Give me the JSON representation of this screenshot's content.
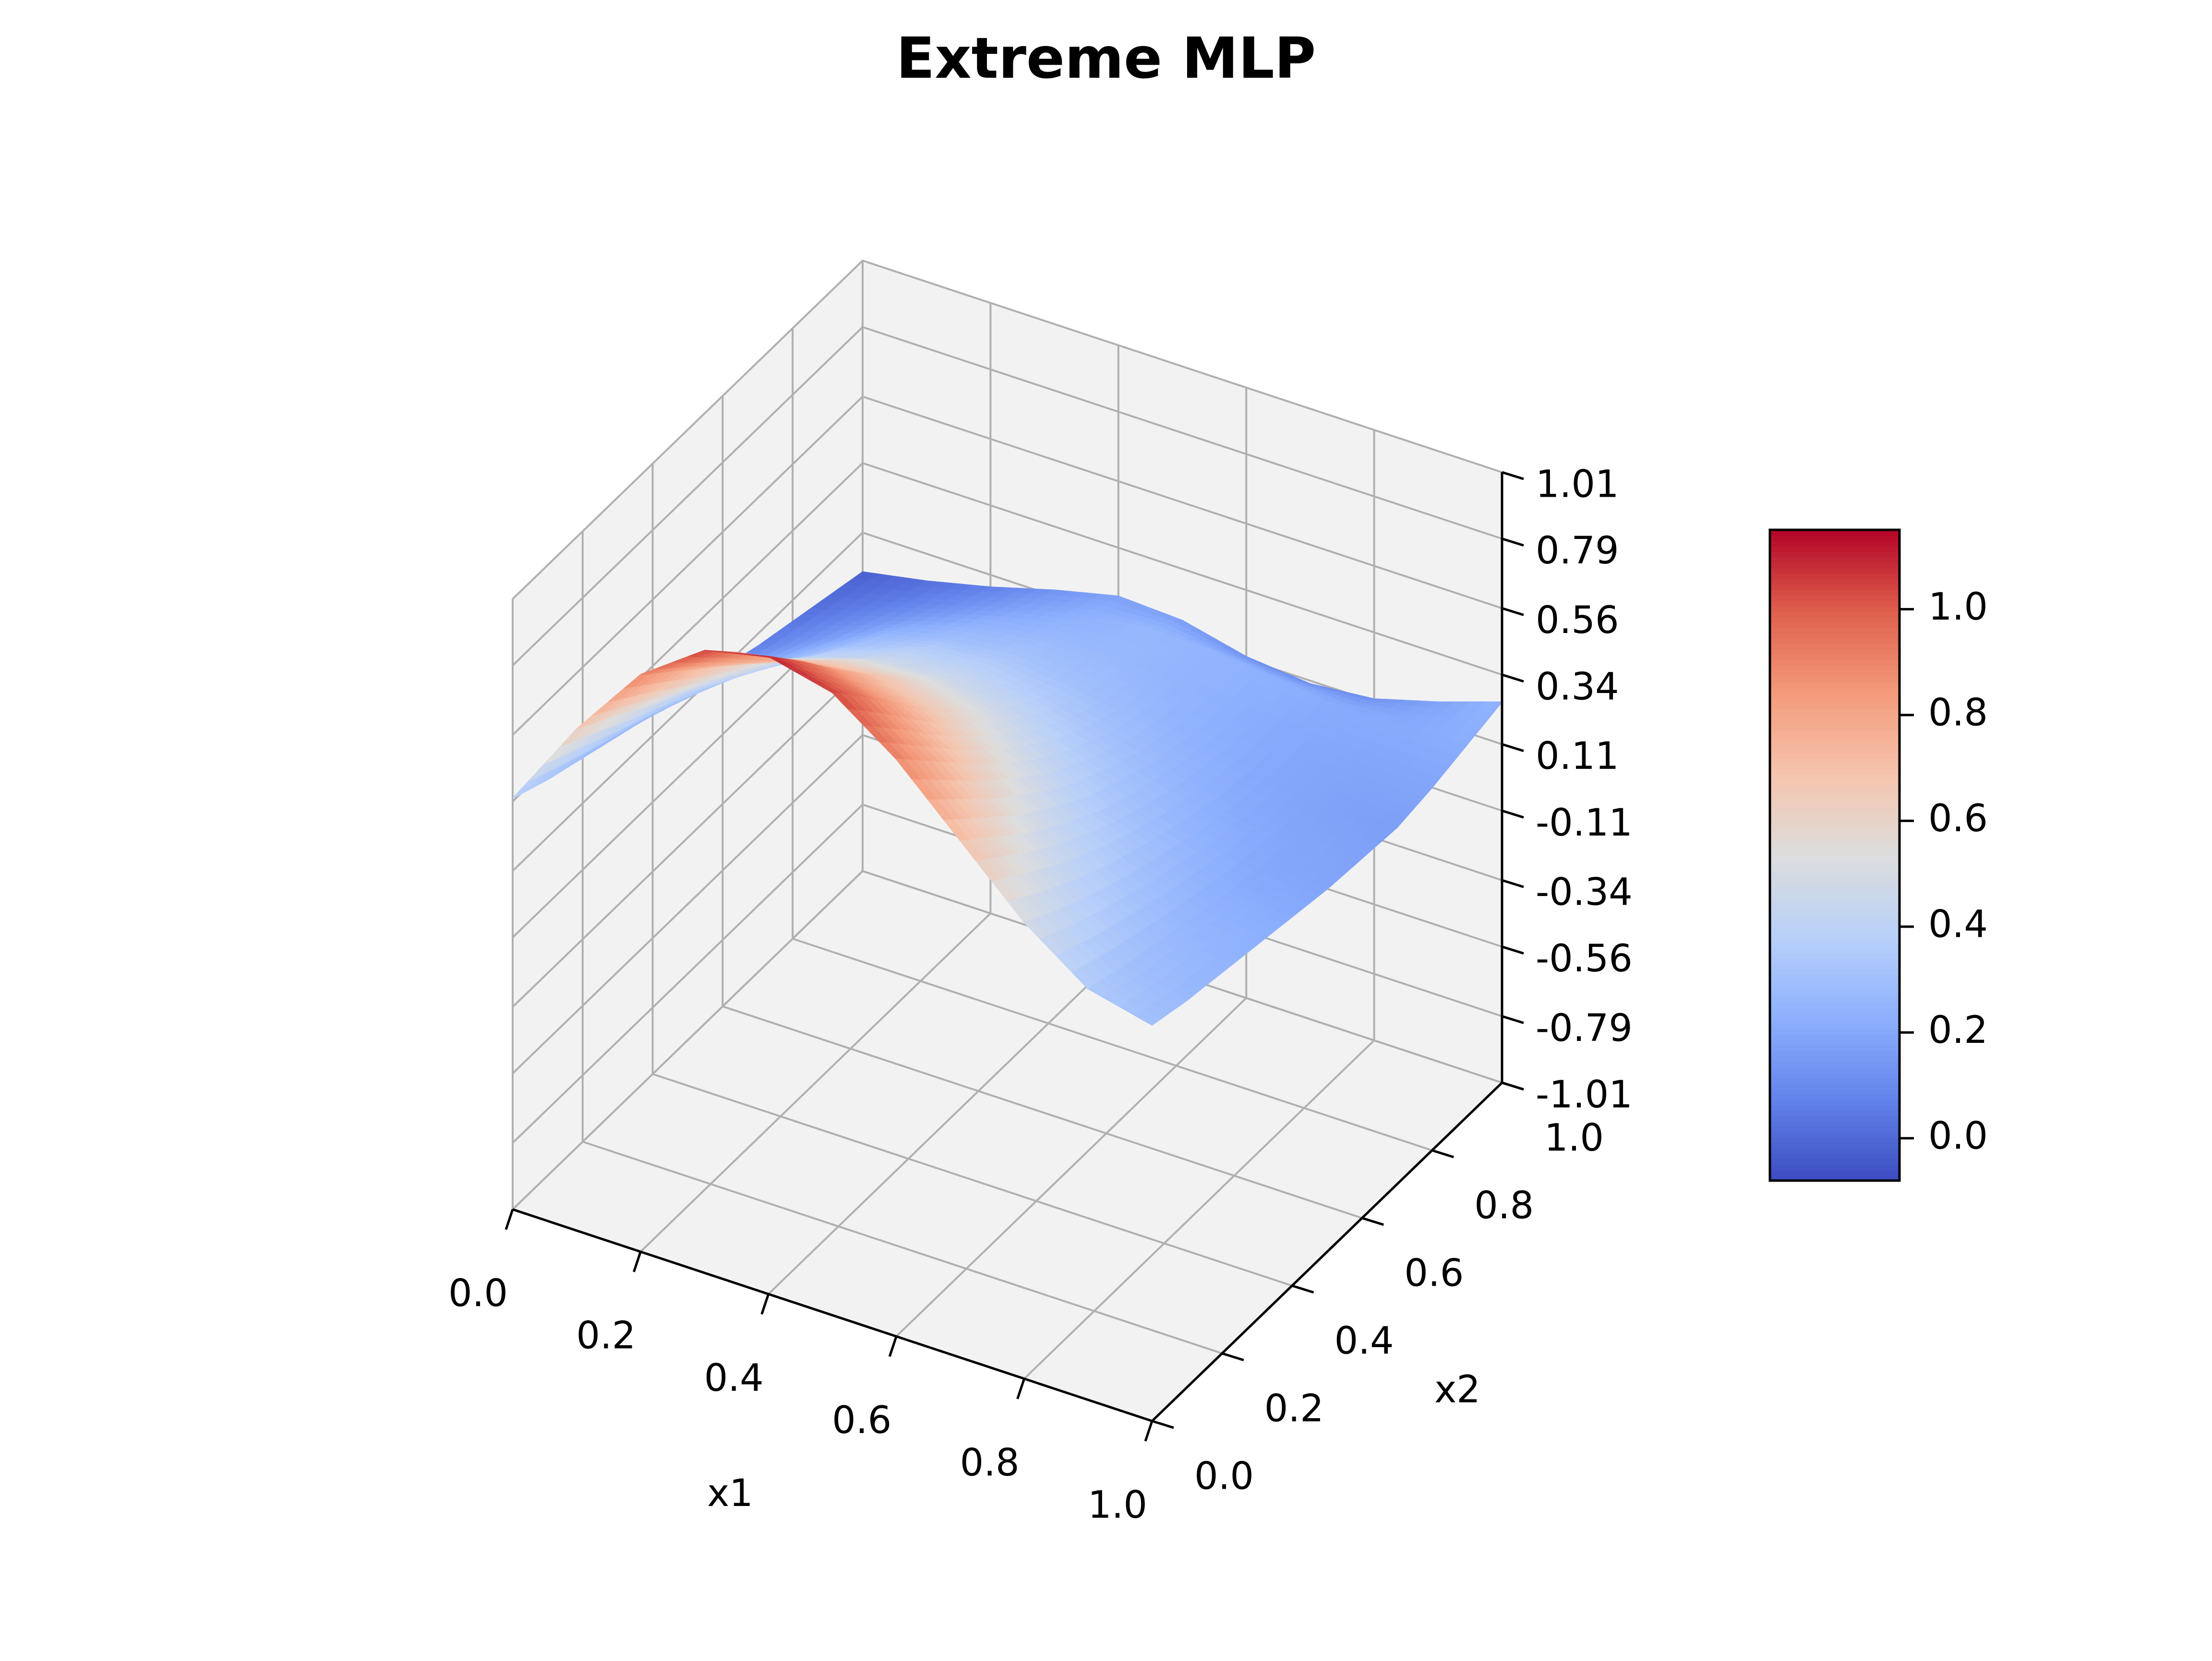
{
  "chart_data": {
    "type": "surface3d",
    "title": "Extreme MLP",
    "xlabel": "x1",
    "ylabel": "x2",
    "zlabel": "",
    "xlim": [
      0.0,
      1.0
    ],
    "ylim": [
      0.0,
      1.0
    ],
    "zlim": [
      -1.01,
      1.01
    ],
    "x_ticks": [
      "0.0",
      "0.2",
      "0.4",
      "0.6",
      "0.8",
      "1.0"
    ],
    "y_ticks": [
      "0.0",
      "0.2",
      "0.4",
      "0.6",
      "0.8",
      "1.0"
    ],
    "z_ticks": [
      "-1.01",
      "-0.79",
      "-0.56",
      "-0.34",
      "-0.11",
      "0.11",
      "0.34",
      "0.56",
      "0.79",
      "1.01"
    ],
    "grid": true,
    "colormap": "coolwarm",
    "colorbar": {
      "range": [
        -0.08,
        1.15
      ],
      "ticks": [
        "0.0",
        "0.2",
        "0.4",
        "0.6",
        "0.8",
        "1.0"
      ]
    },
    "surface": {
      "x": [
        0.0,
        0.1,
        0.2,
        0.3,
        0.4,
        0.5,
        0.6,
        0.7,
        0.8,
        0.9,
        1.0
      ],
      "y": [
        0.0,
        0.1,
        0.2,
        0.3,
        0.4,
        0.5,
        0.6,
        0.7,
        0.8,
        0.9,
        1.0
      ],
      "z": [
        [
          0.35,
          0.65,
          0.9,
          1.05,
          1.1,
          1.05,
          0.9,
          0.7,
          0.5,
          0.35,
          0.3
        ],
        [
          0.3,
          0.58,
          0.8,
          0.93,
          0.97,
          0.92,
          0.78,
          0.6,
          0.43,
          0.31,
          0.27
        ],
        [
          0.26,
          0.5,
          0.7,
          0.8,
          0.83,
          0.78,
          0.66,
          0.5,
          0.37,
          0.28,
          0.25
        ],
        [
          0.22,
          0.43,
          0.6,
          0.68,
          0.7,
          0.65,
          0.55,
          0.42,
          0.32,
          0.25,
          0.23
        ],
        [
          0.18,
          0.35,
          0.5,
          0.57,
          0.58,
          0.54,
          0.45,
          0.35,
          0.28,
          0.22,
          0.21
        ],
        [
          0.14,
          0.28,
          0.4,
          0.46,
          0.47,
          0.44,
          0.37,
          0.3,
          0.24,
          0.2,
          0.19
        ],
        [
          0.11,
          0.22,
          0.32,
          0.38,
          0.39,
          0.36,
          0.31,
          0.26,
          0.21,
          0.19,
          0.18
        ],
        [
          0.07,
          0.16,
          0.25,
          0.3,
          0.32,
          0.3,
          0.27,
          0.23,
          0.2,
          0.18,
          0.17
        ],
        [
          0.04,
          0.11,
          0.18,
          0.24,
          0.27,
          0.27,
          0.25,
          0.22,
          0.2,
          0.19,
          0.19
        ],
        [
          0.01,
          0.06,
          0.12,
          0.18,
          0.23,
          0.26,
          0.25,
          0.23,
          0.21,
          0.21,
          0.22
        ],
        [
          -0.02,
          0.02,
          0.07,
          0.13,
          0.18,
          0.17,
          0.12,
          0.1,
          0.12,
          0.18,
          0.25
        ]
      ]
    }
  }
}
